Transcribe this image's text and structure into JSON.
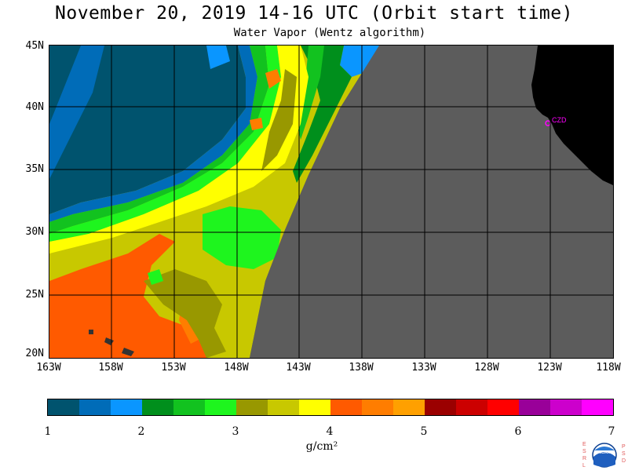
{
  "title": "November 20, 2019  14-16 UTC  (Orbit start time)",
  "subtitle": "Water Vapor (Wentz algorithm)",
  "map": {
    "lat_labels": [
      "45N",
      "40N",
      "35N",
      "30N",
      "25N",
      "20N"
    ],
    "lon_labels": [
      "163W",
      "158W",
      "153W",
      "148W",
      "143W",
      "138W",
      "133W",
      "128W",
      "123W",
      "118W"
    ],
    "lat_range": [
      20,
      45
    ],
    "lon_range": [
      -163,
      -118
    ],
    "place_marker": "CZD",
    "no_data_color": "#5c5c5c",
    "land_color": "#000000",
    "marker_color": "#ff00ff"
  },
  "colorbar": {
    "units": "g/cm²",
    "tick_labels": [
      "1",
      "2",
      "3",
      "4",
      "5",
      "6",
      "7"
    ],
    "colors": [
      "#00536e",
      "#006cb8",
      "#0a96ff",
      "#008f1c",
      "#12c21f",
      "#1ef51e",
      "#989800",
      "#c8c800",
      "#ffff00",
      "#ff5a00",
      "#ff7d00",
      "#ffa000",
      "#9b0000",
      "#cc0000",
      "#ff0000",
      "#990099",
      "#cc00cc",
      "#ff00ff"
    ]
  },
  "logo": {
    "left_letters": "ESRL",
    "right_letters": "PSD",
    "center_text": "NOAA"
  }
}
